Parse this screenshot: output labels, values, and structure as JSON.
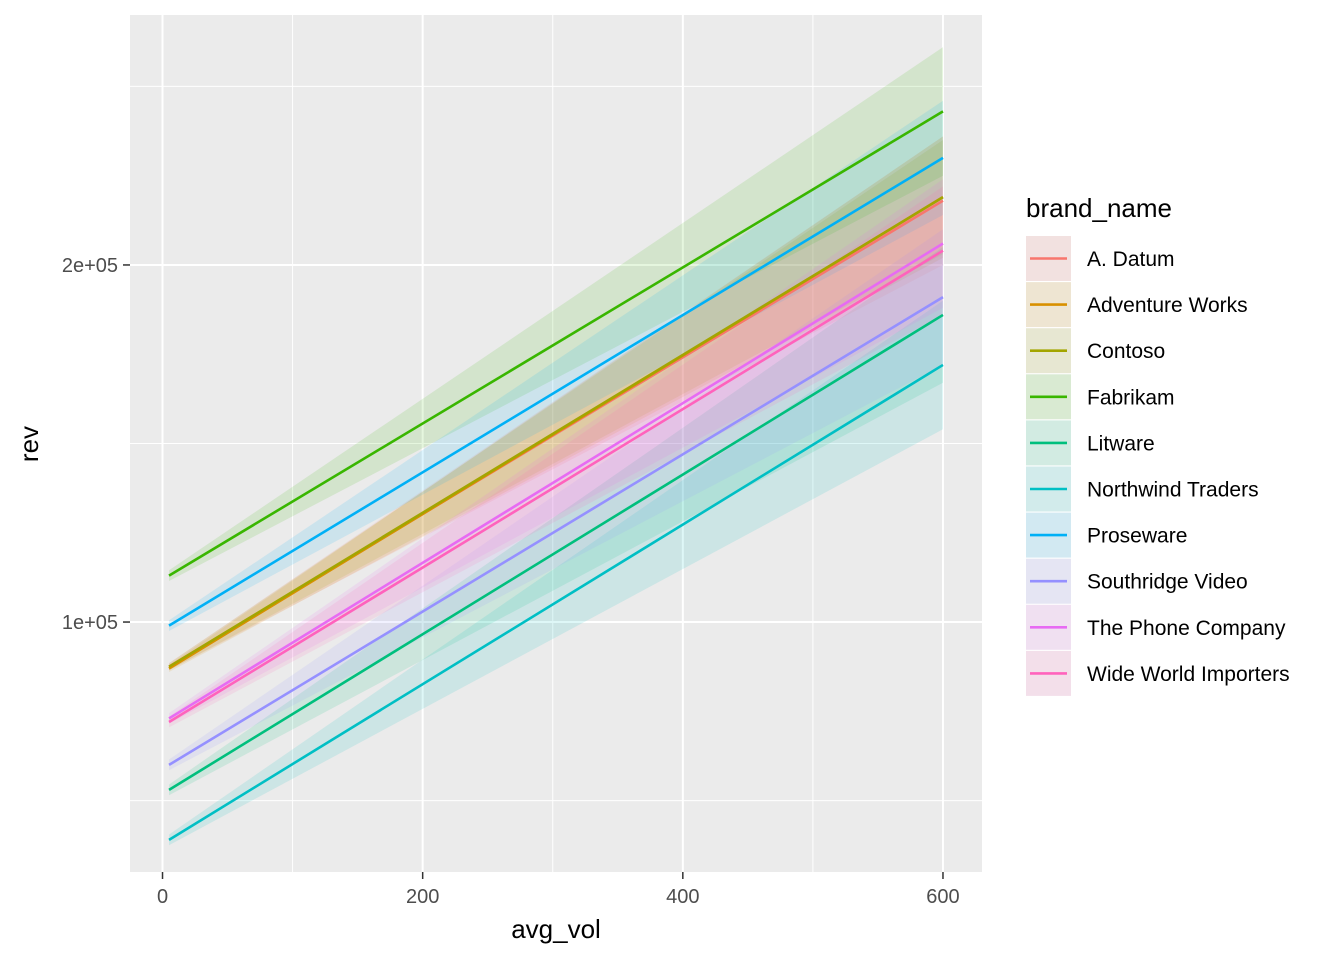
{
  "chart_data": {
    "type": "line",
    "title": "",
    "xlabel": "avg_vol",
    "ylabel": "rev",
    "xlim": [
      -25,
      630
    ],
    "ylim": [
      30000,
      270000
    ],
    "x_ticks": [
      0,
      200,
      400,
      600
    ],
    "x_tick_labels": [
      "0",
      "200",
      "400",
      "600"
    ],
    "y_ticks": [
      100000,
      200000
    ],
    "y_tick_labels": [
      "1e+05",
      "2e+05"
    ],
    "grid": true,
    "panel_background": "#ebebeb",
    "legend": {
      "title": "brand_name",
      "placement": "right"
    },
    "x": [
      5,
      600
    ],
    "series": [
      {
        "name": "A. Datum",
        "color": "#F8766D",
        "values": [
          87500,
          218000
        ],
        "ci_low": [
          86500,
          200000
        ],
        "ci_high": [
          88500,
          236000
        ]
      },
      {
        "name": "Adventure Works",
        "color": "#D89000",
        "values": [
          87000,
          219000
        ],
        "ci_low": [
          86000,
          202000
        ],
        "ci_high": [
          88000,
          236000
        ]
      },
      {
        "name": "Contoso",
        "color": "#A3A500",
        "values": [
          87500,
          219000
        ],
        "ci_low": [
          86500,
          203000
        ],
        "ci_high": [
          88500,
          235000
        ]
      },
      {
        "name": "Fabrikam",
        "color": "#39B600",
        "values": [
          113000,
          243000
        ],
        "ci_low": [
          111500,
          225000
        ],
        "ci_high": [
          114500,
          261000
        ]
      },
      {
        "name": "Litware",
        "color": "#00BF7D",
        "values": [
          53000,
          186000
        ],
        "ci_low": [
          51500,
          167000
        ],
        "ci_high": [
          54500,
          205000
        ]
      },
      {
        "name": "Northwind Traders",
        "color": "#00BFC4",
        "values": [
          39000,
          172000
        ],
        "ci_low": [
          37500,
          154000
        ],
        "ci_high": [
          40500,
          190000
        ]
      },
      {
        "name": "Proseware",
        "color": "#00B0F6",
        "values": [
          99000,
          230000
        ],
        "ci_low": [
          97500,
          214000
        ],
        "ci_high": [
          100500,
          246000
        ]
      },
      {
        "name": "Southridge Video",
        "color": "#9590FF",
        "values": [
          60000,
          191000
        ],
        "ci_low": [
          58500,
          172000
        ],
        "ci_high": [
          61500,
          210000
        ]
      },
      {
        "name": "The Phone Company",
        "color": "#E76BF3",
        "values": [
          73000,
          206000
        ],
        "ci_low": [
          71500,
          188000
        ],
        "ci_high": [
          74500,
          224000
        ]
      },
      {
        "name": "Wide World Importers",
        "color": "#FF62BC",
        "values": [
          72000,
          204000
        ],
        "ci_low": [
          70500,
          186000
        ],
        "ci_high": [
          73500,
          222000
        ]
      }
    ]
  }
}
